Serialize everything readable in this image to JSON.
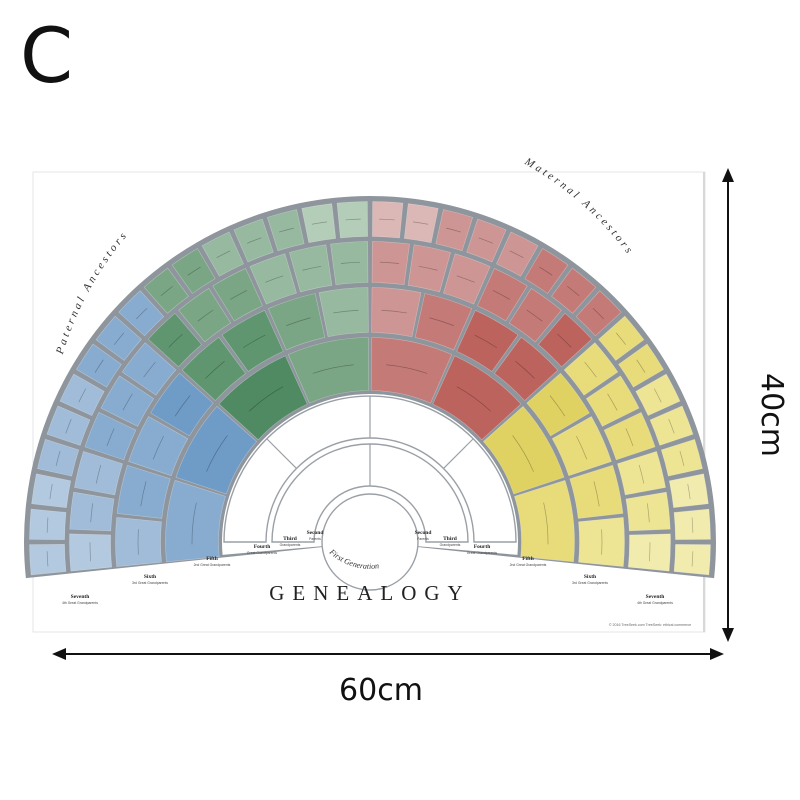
{
  "label": "C",
  "poster": {
    "title": "GENEALOGY",
    "paternal_arc_label": "Paternal Ancestors",
    "maternal_arc_label": "Maternal Ancestors",
    "first_generation": "First Generation",
    "copyright": "© 2016 TreeSeek.com  TreeSeek: ethical commerce",
    "generations_left": [
      {
        "name": "Second",
        "sub": "Parents"
      },
      {
        "name": "Third",
        "sub": "Grandparents"
      },
      {
        "name": "Fourth",
        "sub": "Great Grandparents"
      },
      {
        "name": "Fifth",
        "sub": "2nd Great Grandparents"
      },
      {
        "name": "Sixth",
        "sub": "3rd Great Grandparents"
      },
      {
        "name": "Seventh",
        "sub": "4th Great Grandparents"
      }
    ],
    "generations_right": [
      {
        "name": "Second",
        "sub": "Parents"
      },
      {
        "name": "Third",
        "sub": "Grandparents"
      },
      {
        "name": "Fourth",
        "sub": "Great Grandparents"
      },
      {
        "name": "Fifth",
        "sub": "2nd Great Grandparents"
      },
      {
        "name": "Sixth",
        "sub": "3rd Great Grandparents"
      },
      {
        "name": "Seventh",
        "sub": "4th Great Grandparents"
      }
    ]
  },
  "dimensions": {
    "width_label": "60cm",
    "height_label": "40cm"
  },
  "colors": {
    "blue": [
      "#5d8ebf",
      "#6f9bc7",
      "#88acd0",
      "#a0bcd8",
      "#b3c9df",
      "#c2d4e5"
    ],
    "green": [
      "#4f8a63",
      "#5f9670",
      "#7aa685",
      "#96b99f",
      "#b3cdb8",
      "#cfe0d2"
    ],
    "red": [
      "#b5524d",
      "#bd635e",
      "#c47a77",
      "#cd9593",
      "#dbb7b5",
      "#e8d3d1"
    ],
    "yellow": [
      "#d9c94e",
      "#e0d262",
      "#e7db7a",
      "#ede494",
      "#f2ebae",
      "#f6f1c7"
    ],
    "rule": "#8e959c",
    "text": "#222222"
  }
}
